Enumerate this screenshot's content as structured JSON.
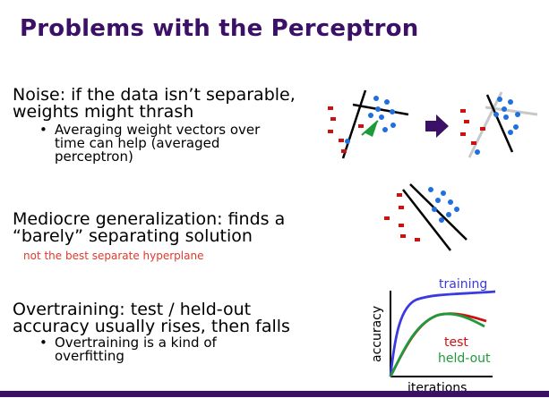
{
  "slide": {
    "title": "Problems with the Perceptron",
    "noise": {
      "line1": "Noise: if the data isn’t separable,",
      "line2": "weights might thrash",
      "bullet_line1": "Averaging weight vectors over",
      "bullet_line2": "time can help (averaged",
      "bullet_line3": "perceptron)"
    },
    "mediocre": {
      "line1": "Mediocre generalization: finds a",
      "line2": "“barely” separating solution",
      "note": "not the best separate hyperplane"
    },
    "overtraining": {
      "line1": "Overtraining: test / held-out",
      "line2": "accuracy usually rises, then falls",
      "bullet_line1": "Overtraining is a kind of",
      "bullet_line2": "overfitting"
    },
    "bullet_char": "•",
    "plot": {
      "training_label": "training",
      "test_label": "test",
      "heldout_label": "held-out",
      "x_axis_label": "iterations",
      "y_axis_label": "accuracy"
    }
  },
  "colors": {
    "title": "#3b1066",
    "note": "#e0392b",
    "positive_points": "#1e6fe0",
    "negative_points": "#cc1111",
    "weight_vector": "#1f9a3a",
    "arrow": "#3b1066",
    "training_curve": "#3a3ae0",
    "test_curve": "#cc1111",
    "heldout_curve": "#1f9a3a"
  }
}
